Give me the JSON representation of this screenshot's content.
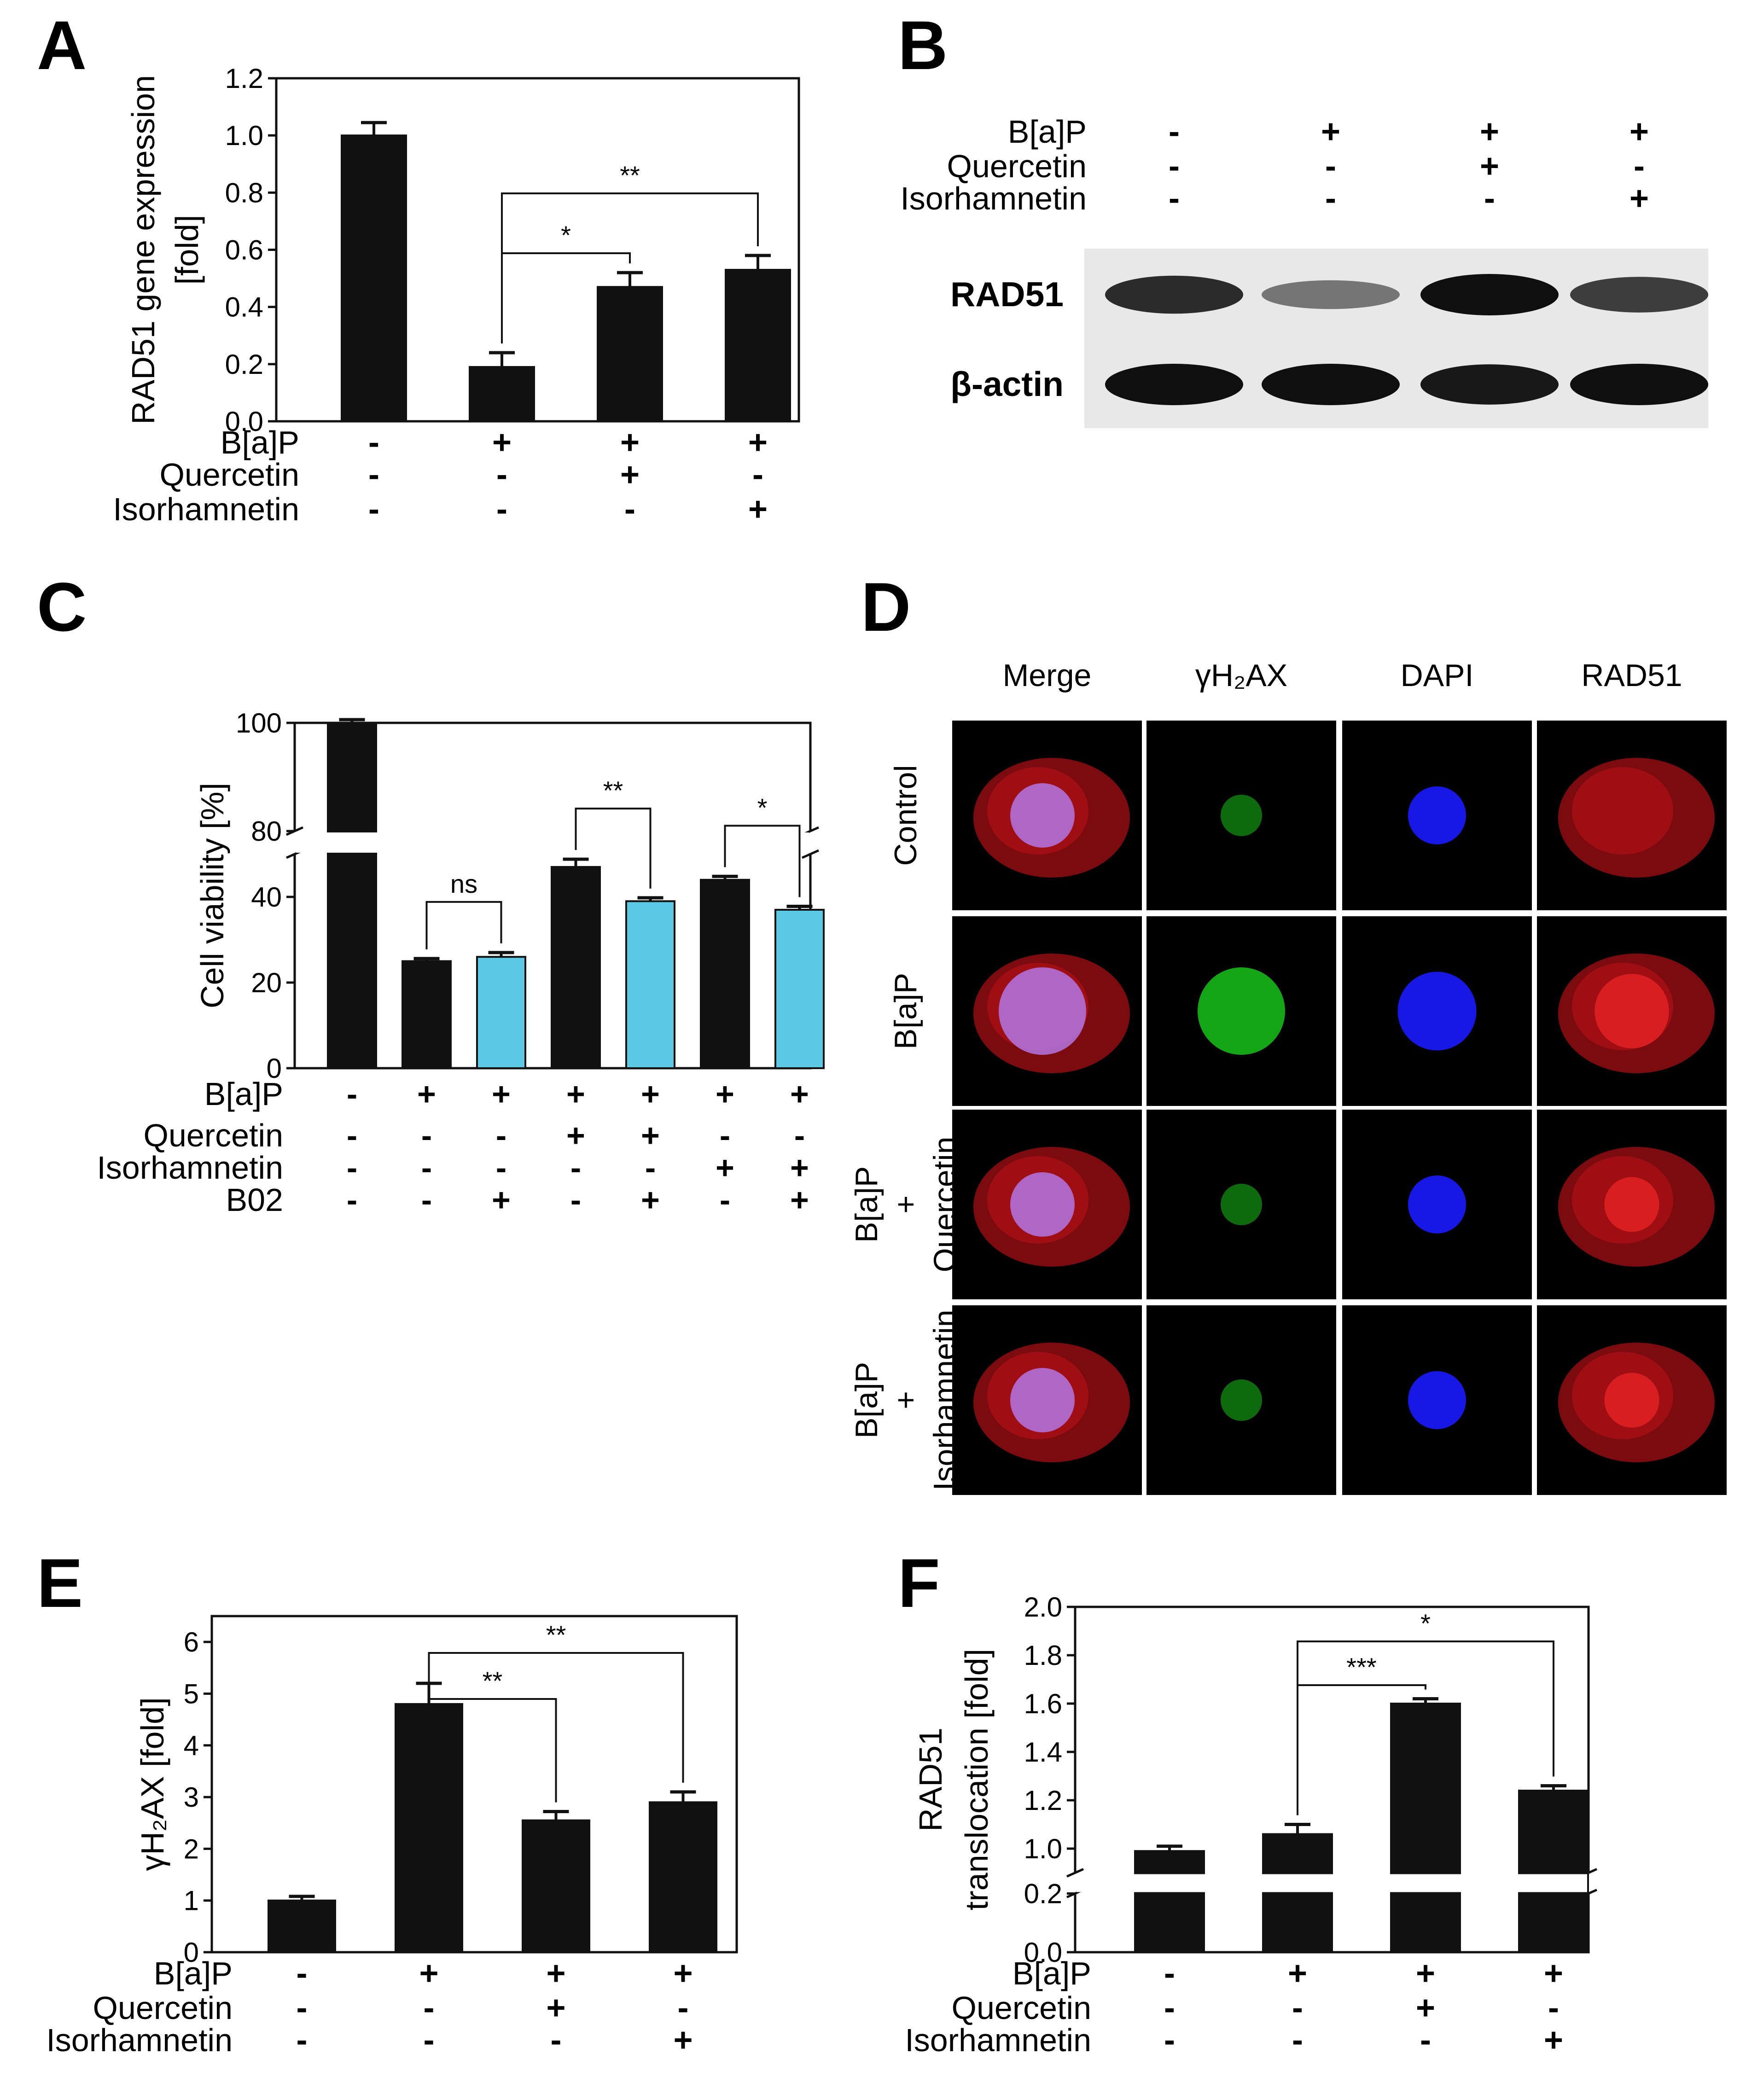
{
  "panels": {
    "A": {
      "letter": "A"
    },
    "B": {
      "letter": "B"
    },
    "C": {
      "letter": "C"
    },
    "D": {
      "letter": "D"
    },
    "E": {
      "letter": "E"
    },
    "F": {
      "letter": "F"
    }
  },
  "colors": {
    "bar_black": "#111111",
    "bar_cyan": "#5bc8e4",
    "merge_bg": "#000000",
    "red": "#e0141c",
    "green": "#18c21a",
    "blue": "#1a1aff",
    "blot_bg": "#e8e8e8"
  },
  "chart_data": [
    {
      "panel": "A",
      "type": "bar",
      "ylabel": [
        "RAD51 gene expression",
        "[fold]"
      ],
      "ylim": [
        0,
        1.2
      ],
      "yticks": [
        "0.0",
        "0.2",
        "0.4",
        "0.6",
        "0.8",
        "1.0",
        "1.2"
      ],
      "values": [
        1.0,
        0.19,
        0.47,
        0.53
      ],
      "errors": [
        0.045,
        0.05,
        0.05,
        0.05
      ],
      "bar_colors": [
        "black",
        "black",
        "black",
        "black"
      ],
      "brackets": [
        {
          "from": 1,
          "to": 2,
          "label": "*"
        },
        {
          "from": 1,
          "to": 3,
          "label": "**"
        }
      ],
      "treatments": [
        {
          "name": "B[a]P",
          "signs": [
            "-",
            "+",
            "+",
            "+"
          ]
        },
        {
          "name": "Quercetin",
          "signs": [
            "-",
            "-",
            "+",
            "-"
          ]
        },
        {
          "name": "Isorhamnetin",
          "signs": [
            "-",
            "-",
            "-",
            "+"
          ]
        }
      ]
    },
    {
      "panel": "C",
      "type": "bar",
      "ylabel": [
        "Cell viability [%]"
      ],
      "ylim": [
        0,
        100
      ],
      "axis_break": [
        50,
        80
      ],
      "yticks": [
        "0",
        "20",
        "40",
        "80",
        "100"
      ],
      "values": [
        100,
        25,
        26,
        47,
        39,
        44,
        37
      ],
      "errors": [
        0.6,
        0.6,
        1.0,
        1.8,
        0.8,
        0.8,
        0.8
      ],
      "bar_colors": [
        "black",
        "black",
        "cyan",
        "black",
        "cyan",
        "black",
        "cyan"
      ],
      "brackets": [
        {
          "from": 1,
          "to": 2,
          "label": "ns"
        },
        {
          "from": 3,
          "to": 4,
          "label": "**"
        },
        {
          "from": 5,
          "to": 6,
          "label": "*"
        }
      ],
      "treatments": [
        {
          "name": "B[a]P",
          "signs": [
            "-",
            "+",
            "+",
            "+",
            "+",
            "+",
            "+"
          ]
        },
        {
          "name": "Quercetin",
          "signs": [
            "-",
            "-",
            "-",
            "+",
            "+",
            "-",
            "-"
          ]
        },
        {
          "name": "Isorhamnetin",
          "signs": [
            "-",
            "-",
            "-",
            "-",
            "-",
            "+",
            "+"
          ]
        },
        {
          "name": "B02",
          "signs": [
            "-",
            "-",
            "+",
            "-",
            "+",
            "-",
            "+"
          ]
        }
      ]
    },
    {
      "panel": "E",
      "type": "bar",
      "ylabel": [
        "γH₂AX [fold]"
      ],
      "ylim": [
        0,
        6.5
      ],
      "yticks": [
        "0",
        "1",
        "2",
        "3",
        "4",
        "5",
        "6"
      ],
      "values": [
        1.0,
        4.8,
        2.55,
        2.9
      ],
      "errors": [
        0.08,
        0.4,
        0.17,
        0.2
      ],
      "bar_colors": [
        "black",
        "black",
        "black",
        "black"
      ],
      "brackets": [
        {
          "from": 1,
          "to": 2,
          "label": "**"
        },
        {
          "from": 1,
          "to": 3,
          "label": "**"
        }
      ],
      "treatments": [
        {
          "name": "B[a]P",
          "signs": [
            "-",
            "+",
            "+",
            "+"
          ]
        },
        {
          "name": "Quercetin",
          "signs": [
            "-",
            "-",
            "+",
            "-"
          ]
        },
        {
          "name": "Isorhamnetin",
          "signs": [
            "-",
            "-",
            "-",
            "+"
          ]
        }
      ]
    },
    {
      "panel": "F",
      "type": "bar",
      "ylabel": [
        "RAD51",
        "translocation [fold]"
      ],
      "ylim": [
        0,
        2.0
      ],
      "axis_break": [
        0.2,
        0.9
      ],
      "yticks": [
        "0.0",
        "0.2",
        "1.0",
        "1.2",
        "1.4",
        "1.6",
        "1.8",
        "2.0"
      ],
      "values": [
        0.99,
        1.06,
        1.6,
        1.24
      ],
      "errors": [
        0.02,
        0.04,
        0.02,
        0.02
      ],
      "bar_colors": [
        "black",
        "black",
        "black",
        "black"
      ],
      "brackets": [
        {
          "from": 1,
          "to": 2,
          "label": "***"
        },
        {
          "from": 1,
          "to": 3,
          "label": "*"
        }
      ],
      "treatments": [
        {
          "name": "B[a]P",
          "signs": [
            "-",
            "+",
            "+",
            "+"
          ]
        },
        {
          "name": "Quercetin",
          "signs": [
            "-",
            "-",
            "+",
            "-"
          ]
        },
        {
          "name": "Isorhamnetin",
          "signs": [
            "-",
            "-",
            "-",
            "+"
          ]
        }
      ]
    }
  ],
  "western_blot": {
    "treatments": [
      {
        "name": "B[a]P",
        "signs": [
          "-",
          "+",
          "+",
          "+"
        ]
      },
      {
        "name": "Quercetin",
        "signs": [
          "-",
          "-",
          "+",
          "-"
        ]
      },
      {
        "name": "Isorhamnetin",
        "signs": [
          "-",
          "-",
          "-",
          "+"
        ]
      }
    ],
    "rows": [
      {
        "label": "RAD51",
        "intensity": [
          0.85,
          0.45,
          1.0,
          0.75
        ]
      },
      {
        "label": "β-actin",
        "intensity": [
          1.0,
          1.0,
          0.95,
          1.0
        ]
      }
    ]
  },
  "microscopy": {
    "columns": [
      "Merge",
      "γH₂AX",
      "DAPI",
      "RAD51"
    ],
    "rows": [
      {
        "label_lines": [
          "Control"
        ]
      },
      {
        "label_lines": [
          "B[a]P"
        ]
      },
      {
        "label_lines": [
          "B[a]P",
          "+",
          "Quercetin"
        ]
      },
      {
        "label_lines": [
          "B[a]P",
          "+",
          "Isorhamnetin"
        ]
      }
    ]
  }
}
